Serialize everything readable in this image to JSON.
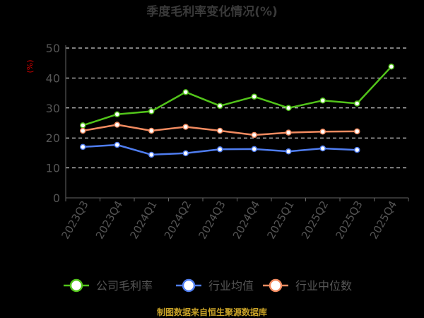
{
  "title": "季度毛利率变化情况(%)",
  "source": "制图数据来自恒生聚源数据库",
  "chart_data": {
    "type": "line",
    "title": "季度毛利率变化情况(%)",
    "ylabel": "(%)",
    "xlabel": "",
    "ylim": [
      0,
      50
    ],
    "yticks": [
      0,
      10,
      20,
      30,
      40,
      50
    ],
    "grid": true,
    "legend_position": "bottom",
    "categories": [
      "2023Q3",
      "2023Q4",
      "2024Q1",
      "2024Q2",
      "2024Q3",
      "2024Q4",
      "2025Q1",
      "2025Q2",
      "2025Q3",
      "2025Q4"
    ],
    "series": [
      {
        "name": "公司毛利率",
        "color": "#52c41a",
        "values": [
          24.2,
          27.9,
          28.9,
          35.3,
          30.7,
          33.8,
          30.0,
          32.5,
          31.5,
          43.8
        ]
      },
      {
        "name": "行业均值",
        "color": "#4f7df0",
        "values": [
          17.0,
          17.7,
          14.4,
          14.9,
          16.2,
          16.3,
          15.5,
          16.5,
          16.0,
          null
        ]
      },
      {
        "name": "行业中位数",
        "color": "#f28b60",
        "values": [
          22.4,
          24.4,
          22.4,
          23.7,
          22.4,
          21.0,
          21.8,
          22.1,
          22.2,
          null
        ]
      }
    ]
  }
}
